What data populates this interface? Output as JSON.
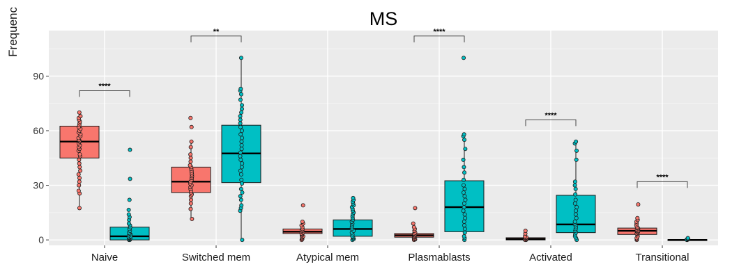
{
  "chart_data": {
    "type": "box",
    "title": "MS",
    "ylabel": "Frequenc",
    "xlabel": "",
    "ylim": [
      -3,
      115
    ],
    "yticks": [
      0,
      30,
      60,
      90
    ],
    "ytick_labels": [
      "0",
      "30",
      "60",
      "90"
    ],
    "grid": true,
    "legend": "none",
    "categories": [
      "Naive",
      "Switched mem",
      "Atypical mem",
      "Plasmablasts",
      "Activated",
      "Transitional"
    ],
    "series_colors": [
      "#F8766D",
      "#00BFC4"
    ],
    "groups": [
      {
        "category": "Naive",
        "significance": "****",
        "bracket_y": 82,
        "boxes": [
          {
            "q1": 45,
            "median": 54,
            "q3": 62.5,
            "whisker_low": 17.5,
            "whisker_high": 70,
            "points": [
              17.5,
              25.5,
              27,
              30,
              32,
              34,
              36,
              38,
              40,
              42,
              44,
              46,
              47,
              49,
              50,
              51,
              52,
              53,
              54,
              54.5,
              55,
              56,
              57,
              58,
              59,
              60,
              61,
              62,
              63,
              64,
              65,
              66,
              67,
              68,
              70
            ]
          },
          {
            "q1": 0,
            "median": 2,
            "q3": 7,
            "whisker_low": 0,
            "whisker_high": 14,
            "points": [
              0,
              0,
              0.3,
              0.5,
              0.8,
              1,
              1.2,
              1.5,
              2,
              2.5,
              3,
              3.5,
              4,
              5,
              6,
              7,
              8,
              9,
              11,
              12.5,
              14,
              16.5,
              22,
              33.5,
              49.5
            ]
          }
        ]
      },
      {
        "category": "Switched mem",
        "significance": "**",
        "bracket_y": 112,
        "boxes": [
          {
            "q1": 26,
            "median": 32,
            "q3": 40,
            "whisker_low": 11.5,
            "whisker_high": 54,
            "points": [
              11.5,
              17,
              20,
              22,
              24,
              25,
              26,
              27,
              28,
              29,
              30,
              31,
              32,
              33,
              34,
              35,
              36,
              37,
              38,
              39,
              40,
              41,
              43,
              45,
              47,
              51,
              54,
              62,
              67
            ]
          },
          {
            "q1": 31.5,
            "median": 47.5,
            "q3": 63,
            "whisker_low": 0,
            "whisker_high": 100,
            "points": [
              0,
              16,
              17.5,
              19,
              22,
              24,
              26,
              28,
              31,
              33,
              36,
              38,
              40,
              42,
              44,
              46,
              48,
              50,
              52,
              54,
              56,
              58,
              60,
              62,
              64,
              66,
              68,
              70,
              72,
              74,
              77,
              80,
              82,
              83,
              100
            ]
          }
        ]
      },
      {
        "category": "Atypical mem",
        "significance": "",
        "boxes": [
          {
            "q1": 3.5,
            "median": 4.5,
            "q3": 6,
            "whisker_low": 0,
            "whisker_high": 10,
            "points": [
              0,
              0.5,
              1,
              1.5,
              2,
              2.5,
              3,
              3.5,
              4,
              4.5,
              5,
              5.5,
              6,
              7,
              8,
              9,
              10,
              19
            ]
          },
          {
            "q1": 2,
            "median": 6,
            "q3": 11,
            "whisker_low": 0,
            "whisker_high": 23,
            "points": [
              0,
              0.5,
              1,
              1.5,
              2,
              3,
              4,
              5,
              6,
              7,
              8,
              9,
              10,
              11,
              12,
              13,
              14,
              15,
              16,
              17,
              18,
              19,
              20,
              21,
              22,
              23
            ]
          }
        ]
      },
      {
        "category": "Plasmablasts",
        "significance": "****",
        "bracket_y": 112,
        "boxes": [
          {
            "q1": 1.5,
            "median": 2.5,
            "q3": 3.5,
            "whisker_low": 0,
            "whisker_high": 6.5,
            "points": [
              0,
              0.3,
              0.6,
              1,
              1.5,
              2,
              2.5,
              3,
              3.5,
              4,
              5,
              6,
              7,
              9,
              17.5
            ]
          },
          {
            "q1": 4.5,
            "median": 18,
            "q3": 32.5,
            "whisker_low": 0,
            "whisker_high": 58,
            "points": [
              0,
              1,
              2,
              4,
              6,
              8,
              10,
              12,
              14,
              16,
              18,
              20,
              22,
              24,
              26,
              28,
              30,
              33,
              37,
              40,
              44,
              50,
              55,
              57,
              58,
              100
            ]
          }
        ]
      },
      {
        "category": "Activated",
        "significance": "****",
        "bracket_y": 66,
        "boxes": [
          {
            "q1": 0,
            "median": 0.5,
            "q3": 1.2,
            "whisker_low": 0,
            "whisker_high": 2,
            "points": [
              0,
              0,
              0.2,
              0.5,
              0.8,
              1,
              1.2,
              1.5,
              2,
              3.5,
              5
            ]
          },
          {
            "q1": 4,
            "median": 8.5,
            "q3": 24.5,
            "whisker_low": 0,
            "whisker_high": 54,
            "points": [
              0,
              1,
              2,
              3,
              4,
              5,
              6,
              7,
              8,
              9,
              10,
              12,
              14,
              16,
              18,
              20,
              22,
              25,
              28,
              30,
              32,
              44,
              49,
              53,
              54
            ]
          }
        ]
      },
      {
        "category": "Transitional",
        "significance": "****",
        "bracket_y": 32,
        "boxes": [
          {
            "q1": 3,
            "median": 5,
            "q3": 6.5,
            "whisker_low": 0,
            "whisker_high": 12,
            "points": [
              0,
              0.5,
              1,
              2,
              3,
              3.5,
              4,
              4.5,
              5,
              5.5,
              6,
              6.5,
              7,
              8,
              9,
              10,
              11,
              12,
              19.5
            ]
          },
          {
            "q1": 0,
            "median": 0,
            "q3": 0.2,
            "whisker_low": 0,
            "whisker_high": 0.5,
            "points": [
              0,
              0,
              0,
              0.2,
              0.3,
              0.5,
              0.8,
              1
            ]
          }
        ]
      }
    ]
  }
}
